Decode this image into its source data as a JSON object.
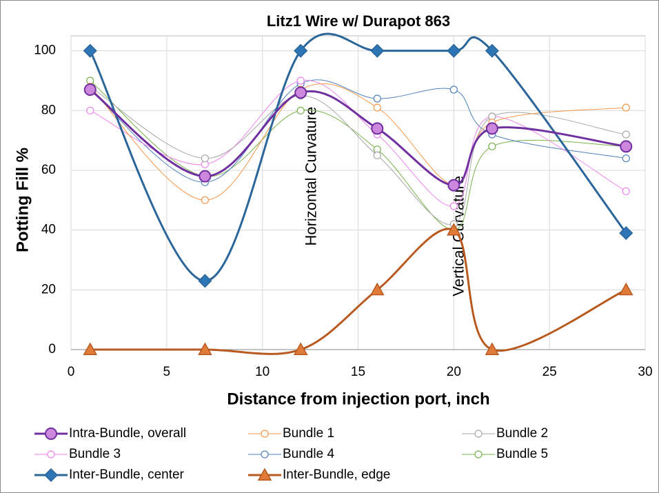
{
  "chart_data": {
    "type": "line",
    "title": "Litz1 Wire w/ Durapot 863",
    "x_label": "Distance from injection port, inch",
    "y_label": "Potting Fill %",
    "annotations": [
      "Horizontal Curvature",
      "Vertical Curvature"
    ],
    "x": [
      1,
      7,
      12,
      16,
      20,
      22,
      29
    ],
    "series": [
      {
        "name": "Intra-Bundle, overall",
        "color": "#7030a0",
        "values": [
          87,
          58,
          86,
          74,
          55,
          74,
          68
        ]
      },
      {
        "name": "Bundle 1",
        "color": "#f79646",
        "values": [
          88,
          50,
          87,
          81,
          55,
          76,
          81
        ]
      },
      {
        "name": "Bundle 2",
        "color": "#a6a6a6",
        "values": [
          88,
          64,
          85,
          65,
          42,
          78,
          72
        ]
      },
      {
        "name": "Bundle 3",
        "color": "#ee82ee",
        "values": [
          80,
          62,
          90,
          72,
          48,
          78,
          53
        ]
      },
      {
        "name": "Bundle 4",
        "color": "#4f81bd",
        "values": [
          87,
          56,
          89,
          84,
          87,
          72,
          64
        ]
      },
      {
        "name": "Bundle 5",
        "color": "#77b04a",
        "values": [
          90,
          58,
          80,
          67,
          40,
          68,
          68
        ]
      },
      {
        "name": "Inter-Bundle, center",
        "color": "#2a6699",
        "values": [
          100,
          23,
          100,
          100,
          100,
          100,
          39
        ]
      },
      {
        "name": "Inter-Bundle, edge",
        "color": "#b85a1f",
        "values": [
          0,
          0,
          0,
          20,
          40,
          0,
          20
        ]
      }
    ],
    "xlim": [
      0,
      30
    ],
    "xticks": [
      0,
      5,
      10,
      15,
      20,
      25,
      30
    ],
    "ylim": [
      0,
      105
    ],
    "yticks": [
      0,
      20,
      40,
      60,
      80,
      100
    ],
    "grid": true,
    "legend": "bottom"
  }
}
